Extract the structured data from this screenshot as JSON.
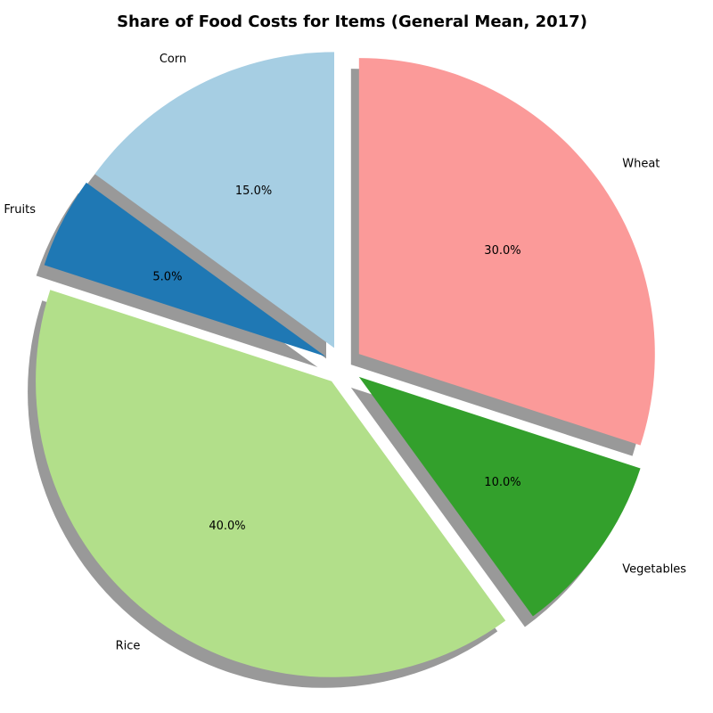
{
  "chart_data": {
    "type": "pie",
    "title": "Share of Food Costs for Items (General Mean, 2017)",
    "categories": [
      "Wheat",
      "Vegetables",
      "Rice",
      "Fruits",
      "Corn"
    ],
    "values": [
      30,
      10,
      40,
      5,
      15
    ],
    "percent_labels": [
      "30.0%",
      "10.0%",
      "40.0%",
      "5.0%",
      "15.0%"
    ],
    "colors": [
      "#fb9a99",
      "#33a02c",
      "#b2df8a",
      "#1f78b4",
      "#a6cee3"
    ],
    "exploded": true,
    "shadow": true,
    "start_angle_deg": 90,
    "direction": "clockwise"
  }
}
